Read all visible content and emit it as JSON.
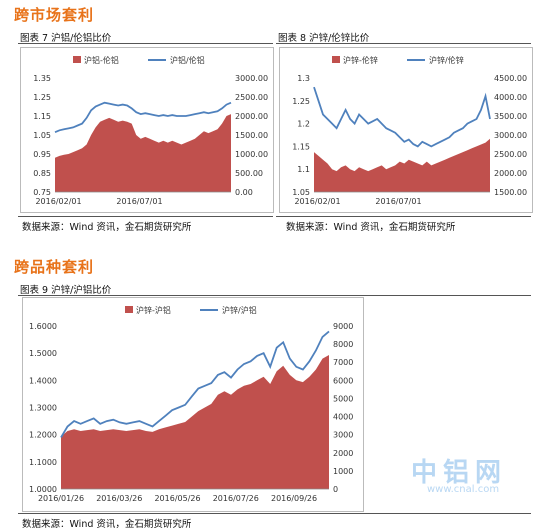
{
  "sections": {
    "cross_market": "跨市场套利",
    "cross_variety": "跨品种套利"
  },
  "captions": {
    "fig7": "图表 7 沪铝/伦铝比价",
    "fig8": "图表 8 沪锌/伦锌比价",
    "fig9": "图表 9 沪锌/沪铝比价"
  },
  "sources": {
    "s1": "数据来源：Wind 资讯，金石期货研究所",
    "s2": "数据来源：Wind 资讯，金石期货研究所",
    "s3": "数据来源：Wind 资讯，金石期货研究所"
  },
  "watermark": {
    "big": "中铝网",
    "small": "www.cnal.com"
  },
  "colors": {
    "bar": "#c0504d",
    "line": "#4f81bd",
    "section": "#e8731a"
  },
  "chart_data": [
    {
      "type": "area",
      "id": "fig7",
      "series": [
        {
          "name": "沪铝-伦铝",
          "axis": "right",
          "values": [
            900,
            950,
            980,
            1000,
            1050,
            1100,
            1150,
            1250,
            1500,
            1700,
            1850,
            1900,
            1950,
            1900,
            1850,
            1880,
            1850,
            1800,
            1500,
            1400,
            1450,
            1400,
            1350,
            1300,
            1350,
            1300,
            1350,
            1300,
            1250,
            1300,
            1350,
            1400,
            1500,
            1600,
            1550,
            1600,
            1650,
            1800,
            2000,
            2050
          ]
        },
        {
          "name": "沪铝/伦铝",
          "axis": "left",
          "values": [
            1.065,
            1.075,
            1.08,
            1.085,
            1.09,
            1.1,
            1.11,
            1.14,
            1.18,
            1.2,
            1.21,
            1.22,
            1.215,
            1.21,
            1.205,
            1.21,
            1.205,
            1.19,
            1.17,
            1.16,
            1.165,
            1.16,
            1.155,
            1.15,
            1.155,
            1.15,
            1.155,
            1.15,
            1.15,
            1.15,
            1.155,
            1.16,
            1.165,
            1.17,
            1.165,
            1.17,
            1.175,
            1.19,
            1.21,
            1.22
          ]
        }
      ],
      "x_ticks": [
        "2016/02/01",
        "2016/07/01"
      ],
      "y_left": {
        "min": 0.75,
        "max": 1.35,
        "ticks": [
          "0.75",
          "0.85",
          "0.95",
          "1.05",
          "1.15",
          "1.25",
          "1.35"
        ]
      },
      "y_right": {
        "min": 0,
        "max": 3000,
        "ticks": [
          "0.00",
          "500.00",
          "1000.00",
          "1500.00",
          "2000.00",
          "2500.00",
          "3000.00"
        ]
      }
    },
    {
      "type": "area",
      "id": "fig8",
      "series": [
        {
          "name": "沪锌-伦锌",
          "axis": "right",
          "values": [
            2550,
            2450,
            2350,
            2250,
            2100,
            2050,
            2150,
            2200,
            2100,
            2050,
            2150,
            2100,
            2050,
            2100,
            2150,
            2200,
            2100,
            2150,
            2200,
            2300,
            2250,
            2350,
            2300,
            2250,
            2200,
            2300,
            2200,
            2250,
            2300,
            2350,
            2400,
            2450,
            2500,
            2550,
            2600,
            2650,
            2700,
            2750,
            2800,
            2900
          ]
        },
        {
          "name": "沪锌/伦锌",
          "axis": "left",
          "values": [
            1.28,
            1.25,
            1.22,
            1.21,
            1.2,
            1.19,
            1.21,
            1.23,
            1.21,
            1.2,
            1.22,
            1.21,
            1.2,
            1.205,
            1.21,
            1.2,
            1.19,
            1.185,
            1.18,
            1.17,
            1.16,
            1.165,
            1.155,
            1.15,
            1.16,
            1.155,
            1.15,
            1.155,
            1.16,
            1.165,
            1.17,
            1.18,
            1.185,
            1.19,
            1.2,
            1.205,
            1.21,
            1.23,
            1.26,
            1.21
          ]
        }
      ],
      "x_ticks": [
        "2016/02/01",
        "2016/07/01"
      ],
      "y_left": {
        "min": 1.05,
        "max": 1.3,
        "ticks": [
          "1.05",
          "1.1",
          "1.15",
          "1.2",
          "1.25",
          "1.3"
        ]
      },
      "y_right": {
        "min": 1500,
        "max": 4500,
        "ticks": [
          "1500.00",
          "2000.00",
          "2500.00",
          "3000.00",
          "3500.00",
          "4000.00",
          "4500.00"
        ]
      }
    },
    {
      "type": "area",
      "id": "fig9",
      "series": [
        {
          "name": "沪锌-沪铝",
          "axis": "right",
          "values": [
            2900,
            3200,
            3300,
            3200,
            3250,
            3300,
            3200,
            3250,
            3300,
            3250,
            3200,
            3250,
            3300,
            3200,
            3150,
            3300,
            3400,
            3500,
            3600,
            3700,
            4000,
            4300,
            4500,
            4700,
            5200,
            5400,
            5200,
            5500,
            5700,
            5800,
            6000,
            6200,
            5800,
            6500,
            6800,
            6300,
            6000,
            5900,
            6200,
            6600,
            7200,
            7400
          ]
        },
        {
          "name": "沪锌/沪铝",
          "axis": "left",
          "values": [
            1.19,
            1.23,
            1.25,
            1.24,
            1.25,
            1.26,
            1.24,
            1.25,
            1.255,
            1.245,
            1.24,
            1.245,
            1.25,
            1.24,
            1.23,
            1.25,
            1.27,
            1.29,
            1.3,
            1.31,
            1.34,
            1.37,
            1.38,
            1.39,
            1.42,
            1.43,
            1.41,
            1.44,
            1.46,
            1.47,
            1.49,
            1.5,
            1.45,
            1.52,
            1.54,
            1.48,
            1.45,
            1.44,
            1.47,
            1.51,
            1.56,
            1.58
          ]
        }
      ],
      "x_ticks": [
        "2016/01/26",
        "2016/03/26",
        "2016/05/26",
        "2016/07/26",
        "2016/09/26"
      ],
      "y_left": {
        "min": 1.0,
        "max": 1.6,
        "ticks": [
          "1.0000",
          "1.1000",
          "1.2000",
          "1.3000",
          "1.4000",
          "1.5000",
          "1.6000"
        ]
      },
      "y_right": {
        "min": 0,
        "max": 9000,
        "ticks": [
          "0",
          "1000",
          "2000",
          "3000",
          "4000",
          "5000",
          "6000",
          "7000",
          "8000",
          "9000"
        ]
      }
    }
  ]
}
